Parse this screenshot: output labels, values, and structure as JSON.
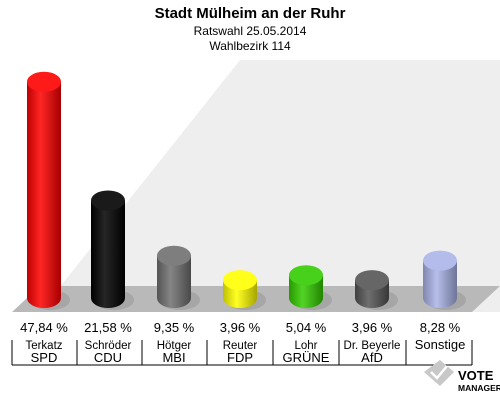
{
  "header": {
    "title": "Stadt Mülheim an der Ruhr",
    "subtitle1": "Ratswahl 25.05.2014",
    "subtitle2": "Wahlbezirk 114"
  },
  "logo": {
    "line1": "VOTE",
    "line2": "MANAGER"
  },
  "chart_data": {
    "type": "bar",
    "title": "Stadt Mülheim an der Ruhr",
    "subtitle": "Ratswahl 25.05.2014 · Wahlbezirk 114",
    "categories": [
      "SPD",
      "CDU",
      "MBI",
      "FDP",
      "GRÜNE",
      "AfD",
      "Sonstige"
    ],
    "candidates": [
      "Terkatz",
      "Schröder",
      "Hötger",
      "Reuter",
      "Lohr",
      "Dr. Beyerle",
      ""
    ],
    "values": [
      47.84,
      21.58,
      9.35,
      3.96,
      5.04,
      3.96,
      8.28
    ],
    "labels": [
      "47,84 %",
      "21,58 %",
      "9,35 %",
      "3,96 %",
      "5,04 %",
      "3,96 %",
      "8,28 %"
    ],
    "colors": [
      "#ff0000",
      "#000000",
      "#707070",
      "#ffff00",
      "#33cc00",
      "#555555",
      "#aab4e8"
    ],
    "ylim": [
      0,
      50
    ],
    "grid": false,
    "legend": "none"
  }
}
